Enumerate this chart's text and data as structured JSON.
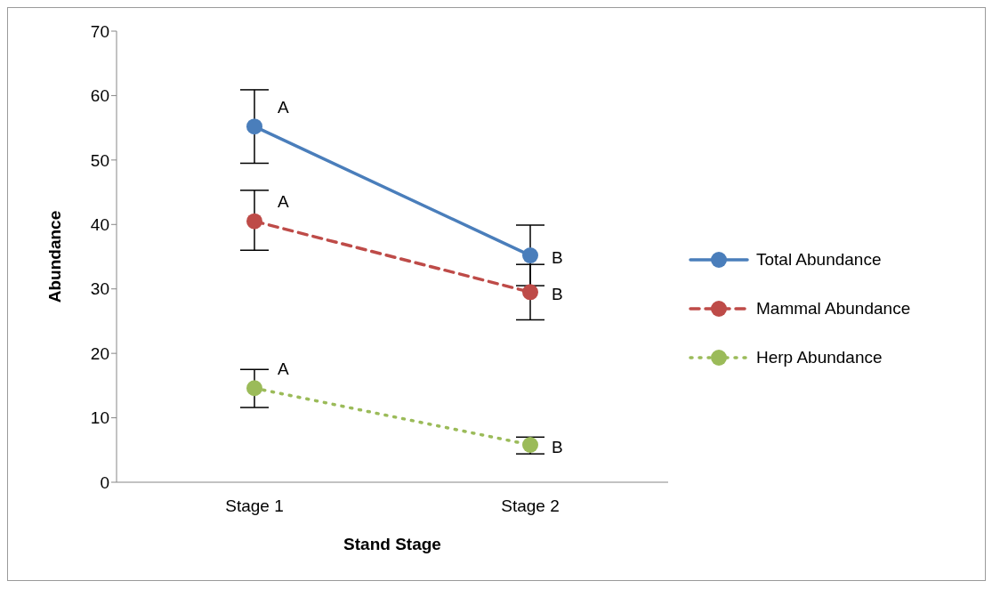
{
  "chart_data": {
    "type": "line",
    "xlabel": "Stand Stage",
    "ylabel": "Abundance",
    "categories": [
      "Stage 1",
      "Stage 2"
    ],
    "series": [
      {
        "name": "Total Abundance",
        "color": "#4a7ebb",
        "values": [
          55.2,
          35.2
        ],
        "errors": [
          [
            49.5,
            60.9
          ],
          [
            30.5,
            39.9
          ]
        ],
        "line_style": "solid"
      },
      {
        "name": "Mammal Abundance",
        "color": "#be4b48",
        "values": [
          40.5,
          29.5
        ],
        "errors": [
          [
            36.0,
            45.3
          ],
          [
            25.2,
            33.8
          ]
        ],
        "line_style": "dashed"
      },
      {
        "name": "Herp Abundance",
        "color": "#9bbb59",
        "values": [
          14.6,
          5.8
        ],
        "errors": [
          [
            11.6,
            17.5
          ],
          [
            4.4,
            7.0
          ]
        ],
        "line_style": "dotted"
      }
    ],
    "ylim": [
      0,
      70
    ],
    "yticks": [
      0,
      10,
      20,
      30,
      40,
      50,
      60,
      70
    ],
    "grid": false,
    "legend": "right",
    "marker": "circle",
    "annotations": [
      {
        "text": "A",
        "x": "Stage 1",
        "y": 55.2
      },
      {
        "text": "B",
        "x": "Stage 2",
        "y": 35.2
      },
      {
        "text": "A",
        "x": "Stage 1",
        "y": 40.5
      },
      {
        "text": "B",
        "x": "Stage 2",
        "y": 29.5
      },
      {
        "text": "A",
        "x": "Stage 1",
        "y": 14.6
      },
      {
        "text": "B",
        "x": "Stage 2",
        "y": 5.8
      }
    ]
  }
}
